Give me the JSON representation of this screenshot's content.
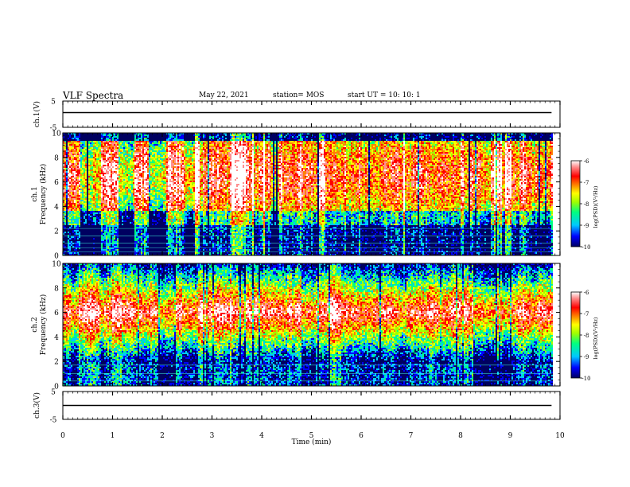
{
  "header": {
    "title": "VLF Spectra",
    "date": "May 22, 2021",
    "station": "station= MOS",
    "start": "start  UT  =   10: 10: 1"
  },
  "chart_data": [
    {
      "type": "line",
      "panel": "ch1-waveform",
      "ylabel": "ch.1(V)",
      "ylim": [
        -5,
        5
      ],
      "yticks": [
        "5",
        "-5"
      ],
      "xlim": [
        0,
        10
      ]
    },
    {
      "type": "heatmap",
      "panel": "ch1-spectrogram",
      "ylabel": "ch.1\nFrequency (kHz)",
      "ylim": [
        0,
        10
      ],
      "yticks": [
        "0",
        "2",
        "4",
        "6",
        "8",
        "10"
      ],
      "xlim": [
        0,
        10
      ],
      "data_extent_min": 9.83,
      "colorbar": {
        "label": "log(PSD)(V²/Hz)",
        "range": [
          -10,
          -6
        ],
        "ticks": [
          "-6",
          "-7",
          "-8",
          "-9",
          "-10"
        ]
      }
    },
    {
      "type": "heatmap",
      "panel": "ch2-spectrogram",
      "ylabel": "ch.2\nFrequency (kHz)",
      "ylim": [
        0,
        10
      ],
      "yticks": [
        "0",
        "2",
        "4",
        "6",
        "8",
        "10"
      ],
      "xlim": [
        0,
        10
      ],
      "data_extent_min": 9.83,
      "colorbar": {
        "label": "log(PSD)(V²/Hz)",
        "range": [
          -10,
          -6
        ],
        "ticks": [
          "-6",
          "-7",
          "-8",
          "-9",
          "-10"
        ]
      }
    },
    {
      "type": "line",
      "panel": "ch3-waveform",
      "ylabel": "ch.3(V)",
      "ylim": [
        -5,
        5
      ],
      "yticks": [
        "5",
        "-5"
      ],
      "xlim": [
        0,
        10
      ],
      "xlabel": "Time (min)",
      "xticks": [
        "0",
        "1",
        "2",
        "3",
        "4",
        "5",
        "6",
        "7",
        "8",
        "9",
        "10"
      ]
    }
  ],
  "colors": {
    "colormap": [
      "#000060",
      "#0000ff",
      "#00c8ff",
      "#00ff80",
      "#a0ff00",
      "#ffff00",
      "#ff8000",
      "#ff0000",
      "#ff9090",
      "#ffffff"
    ]
  }
}
